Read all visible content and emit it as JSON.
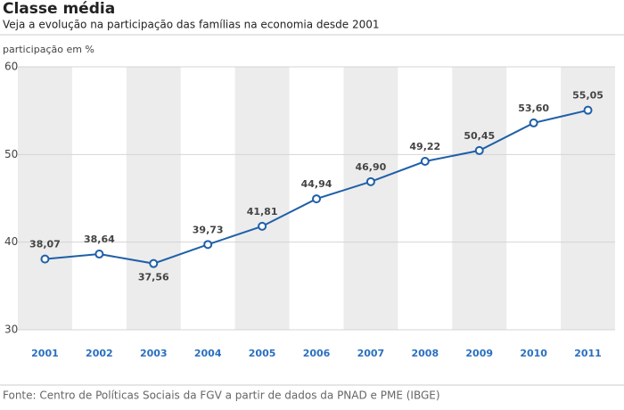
{
  "chart_data": {
    "type": "line",
    "title": "Classe média",
    "subtitle": "Veja a evolução na participação das famílias na economia desde 2001",
    "y_label": "participação em %",
    "source": "Fonte: Centro de Políticas Sociais da FGV a partir de dados da PNAD e PME (IBGE)",
    "categories": [
      "2001",
      "2002",
      "2003",
      "2004",
      "2005",
      "2006",
      "2007",
      "2008",
      "2009",
      "2010",
      "2011"
    ],
    "values": [
      38.07,
      38.64,
      37.56,
      39.73,
      41.81,
      44.94,
      46.9,
      49.22,
      50.45,
      53.6,
      55.05
    ],
    "value_labels": [
      "38,07",
      "38,64",
      "37,56",
      "39,73",
      "41,81",
      "44,94",
      "46,90",
      "49,22",
      "50,45",
      "53,60",
      "55,05"
    ],
    "color": "#1f5fa8",
    "ylim": [
      30,
      60
    ],
    "yticks": [
      30,
      40,
      50,
      60
    ],
    "grid": true
  }
}
